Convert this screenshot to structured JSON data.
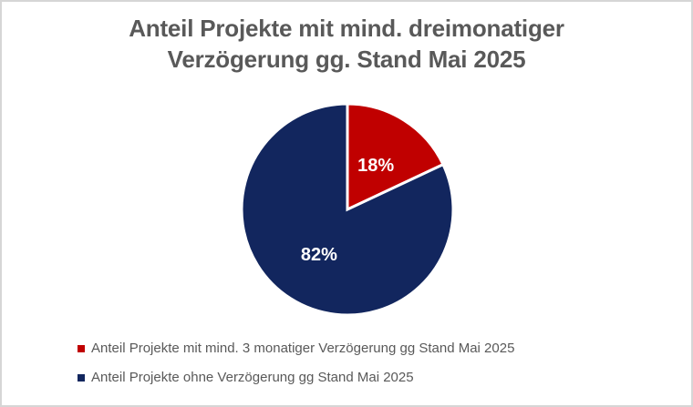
{
  "title": {
    "line1": "Anteil Projekte mit mind. dreimonatiger",
    "line2": "Verzögerung gg. Stand Mai 2025"
  },
  "chart_data": {
    "type": "pie",
    "title": "Anteil Projekte mit mind. dreimonatiger Verzögerung gg. Stand Mai 2025",
    "categories": [
      "Anteil Projekte mit mind. 3 monatiger Verzögerung gg Stand Mai 2025",
      "Anteil Projekte ohne Verzögerung gg Stand Mai 2025"
    ],
    "values": [
      18,
      82
    ],
    "unit": "%",
    "data_labels": [
      "18%",
      "82%"
    ],
    "colors": [
      "#c00000",
      "#12265e"
    ],
    "slice_border_color": "#ffffff",
    "data_label_color": "#ffffff",
    "start_angle_deg": 0,
    "direction": "clockwise",
    "legend_position": "bottom-left",
    "grid": false
  },
  "legend": {
    "items": [
      {
        "label": "Anteil Projekte mit mind. 3 monatiger Verzögerung gg Stand Mai 2025",
        "color": "#c00000"
      },
      {
        "label": "Anteil Projekte ohne Verzögerung gg Stand Mai 2025",
        "color": "#12265e"
      }
    ]
  },
  "theme": {
    "text_color": "#595959",
    "background": "#ffffff",
    "border_color": "#d6d6d6"
  }
}
